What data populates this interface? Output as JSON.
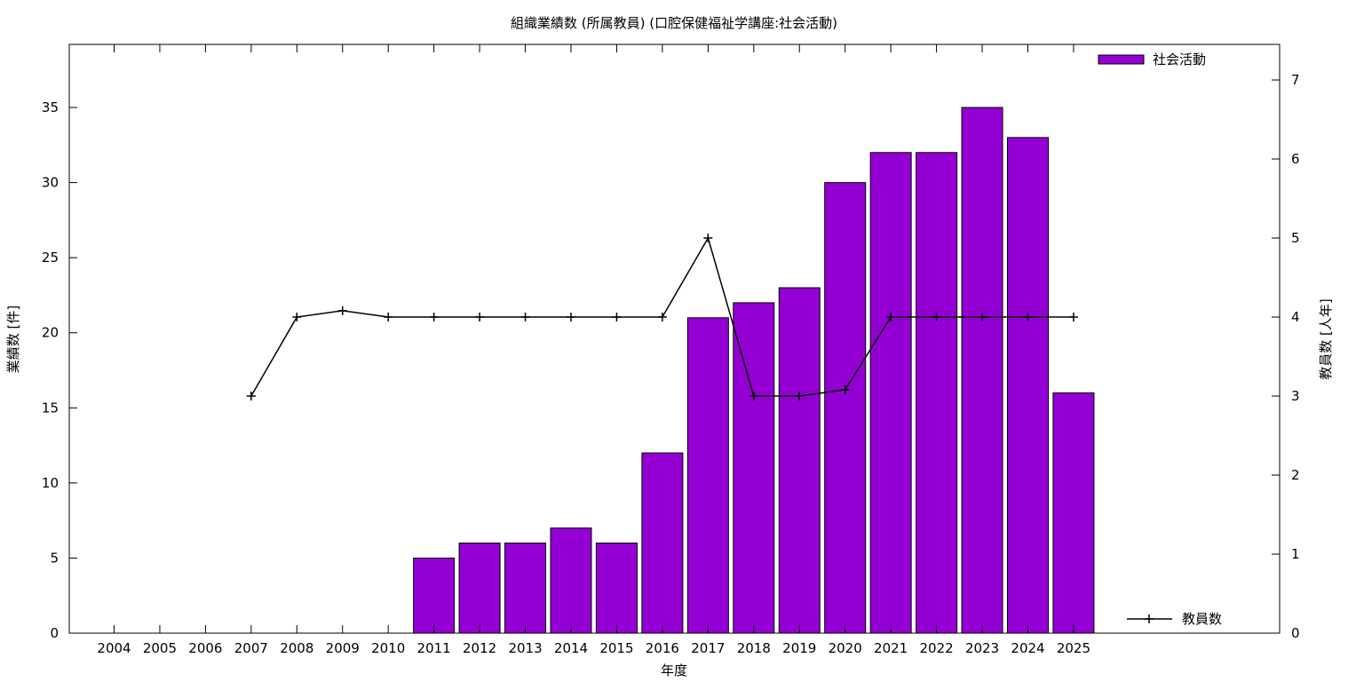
{
  "chart_data": {
    "type": "bar",
    "title": "組織業績数 (所属教員) (口腔保健福祉学講座:社会活動)",
    "xlabel": "年度",
    "ylabel": "業績数 [件]",
    "y2label": "教員数 [人年]",
    "categories": [
      "2004",
      "2005",
      "2006",
      "2007",
      "2008",
      "2009",
      "2010",
      "2011",
      "2012",
      "2013",
      "2014",
      "2015",
      "2016",
      "2017",
      "2018",
      "2019",
      "2020",
      "2021",
      "2022",
      "2023",
      "2024",
      "2025"
    ],
    "ylim": [
      0,
      39.2
    ],
    "y2lim": [
      0,
      7.45
    ],
    "yticks": [
      0,
      5,
      10,
      15,
      20,
      25,
      30,
      35
    ],
    "y2ticks": [
      0,
      1,
      2,
      3,
      4,
      5,
      6,
      7
    ],
    "grid": false,
    "series": [
      {
        "name": "社会活動",
        "kind": "bar",
        "axis": "y",
        "color": "#9400d3",
        "values": [
          null,
          null,
          null,
          null,
          null,
          null,
          null,
          5,
          6,
          6,
          7,
          6,
          12,
          21,
          22,
          23,
          30,
          32,
          32,
          35,
          33,
          16
        ]
      },
      {
        "name": "教員数",
        "kind": "line",
        "axis": "y2",
        "color": "#000000",
        "values": [
          null,
          null,
          null,
          3,
          4,
          4.08,
          4,
          4,
          4,
          4,
          4,
          4,
          4,
          5,
          3,
          3,
          3.08,
          4,
          4,
          4,
          4,
          4
        ]
      }
    ],
    "legend": [
      "top-right",
      "bottom-right"
    ]
  }
}
